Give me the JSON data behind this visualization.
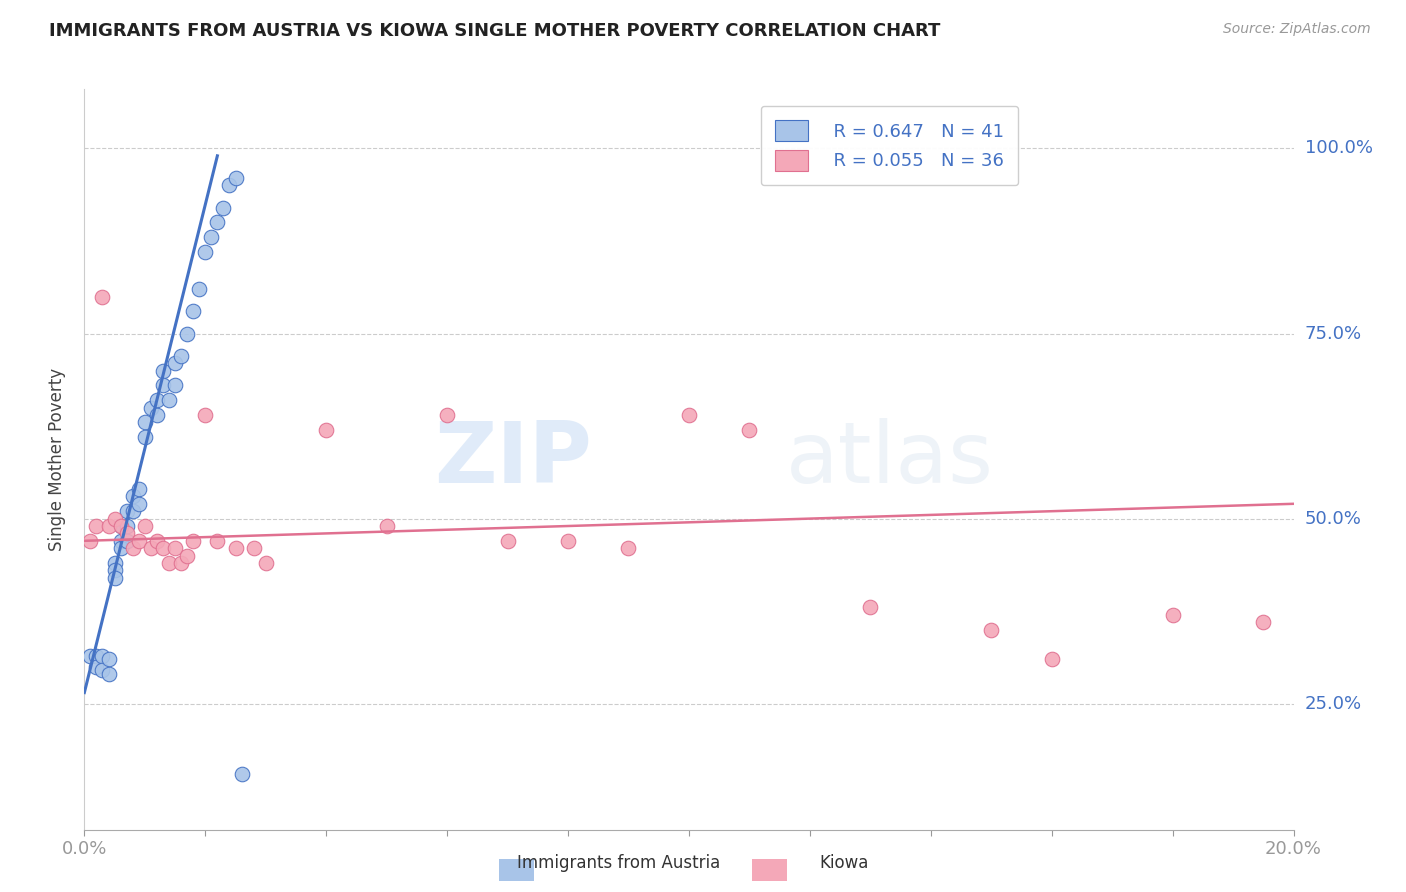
{
  "title": "IMMIGRANTS FROM AUSTRIA VS KIOWA SINGLE MOTHER POVERTY CORRELATION CHART",
  "source": "Source: ZipAtlas.com",
  "ylabel": "Single Mother Poverty",
  "ytick_labels": [
    "25.0%",
    "50.0%",
    "75.0%",
    "100.0%"
  ],
  "ytick_values": [
    0.25,
    0.5,
    0.75,
    1.0
  ],
  "legend_r1": "R = 0.647",
  "legend_n1": "N = 41",
  "legend_r2": "R = 0.055",
  "legend_n2": "N = 36",
  "legend_label1": "Immigrants from Austria",
  "legend_label2": "Kiowa",
  "color_blue": "#a8c4e8",
  "color_pink": "#f4a8b8",
  "line_blue": "#4472c4",
  "line_pink": "#e07090",
  "text_blue": "#4472c4",
  "watermark_zip": "ZIP",
  "watermark_atlas": "atlas",
  "blue_x": [
    0.001,
    0.002,
    0.002,
    0.003,
    0.003,
    0.004,
    0.004,
    0.005,
    0.005,
    0.005,
    0.006,
    0.006,
    0.006,
    0.007,
    0.007,
    0.007,
    0.008,
    0.008,
    0.009,
    0.009,
    0.01,
    0.01,
    0.011,
    0.012,
    0.012,
    0.013,
    0.013,
    0.014,
    0.015,
    0.015,
    0.016,
    0.017,
    0.018,
    0.019,
    0.02,
    0.021,
    0.022,
    0.023,
    0.024,
    0.025,
    0.026
  ],
  "blue_y": [
    0.315,
    0.315,
    0.3,
    0.315,
    0.295,
    0.31,
    0.29,
    0.44,
    0.43,
    0.42,
    0.49,
    0.47,
    0.46,
    0.51,
    0.49,
    0.47,
    0.53,
    0.51,
    0.54,
    0.52,
    0.63,
    0.61,
    0.65,
    0.66,
    0.64,
    0.7,
    0.68,
    0.66,
    0.71,
    0.68,
    0.72,
    0.75,
    0.78,
    0.81,
    0.86,
    0.88,
    0.9,
    0.92,
    0.95,
    0.96,
    0.155
  ],
  "pink_x": [
    0.001,
    0.002,
    0.003,
    0.004,
    0.005,
    0.006,
    0.007,
    0.008,
    0.009,
    0.01,
    0.011,
    0.012,
    0.013,
    0.014,
    0.015,
    0.016,
    0.017,
    0.018,
    0.02,
    0.022,
    0.025,
    0.028,
    0.03,
    0.04,
    0.05,
    0.06,
    0.07,
    0.08,
    0.09,
    0.1,
    0.11,
    0.13,
    0.15,
    0.16,
    0.18,
    0.195
  ],
  "pink_y": [
    0.47,
    0.49,
    0.8,
    0.49,
    0.5,
    0.49,
    0.48,
    0.46,
    0.47,
    0.49,
    0.46,
    0.47,
    0.46,
    0.44,
    0.46,
    0.44,
    0.45,
    0.47,
    0.64,
    0.47,
    0.46,
    0.46,
    0.44,
    0.62,
    0.49,
    0.64,
    0.47,
    0.47,
    0.46,
    0.64,
    0.62,
    0.38,
    0.35,
    0.31,
    0.37,
    0.36
  ],
  "blue_trend_x": [
    0.0,
    0.022
  ],
  "blue_trend_y": [
    0.265,
    0.99
  ],
  "pink_trend_x": [
    0.0,
    0.2
  ],
  "pink_trend_y": [
    0.47,
    0.52
  ],
  "xmin": 0.0,
  "xmax": 0.2,
  "ymin": 0.08,
  "ymax": 1.08,
  "background_color": "#ffffff",
  "grid_color": "#cccccc"
}
